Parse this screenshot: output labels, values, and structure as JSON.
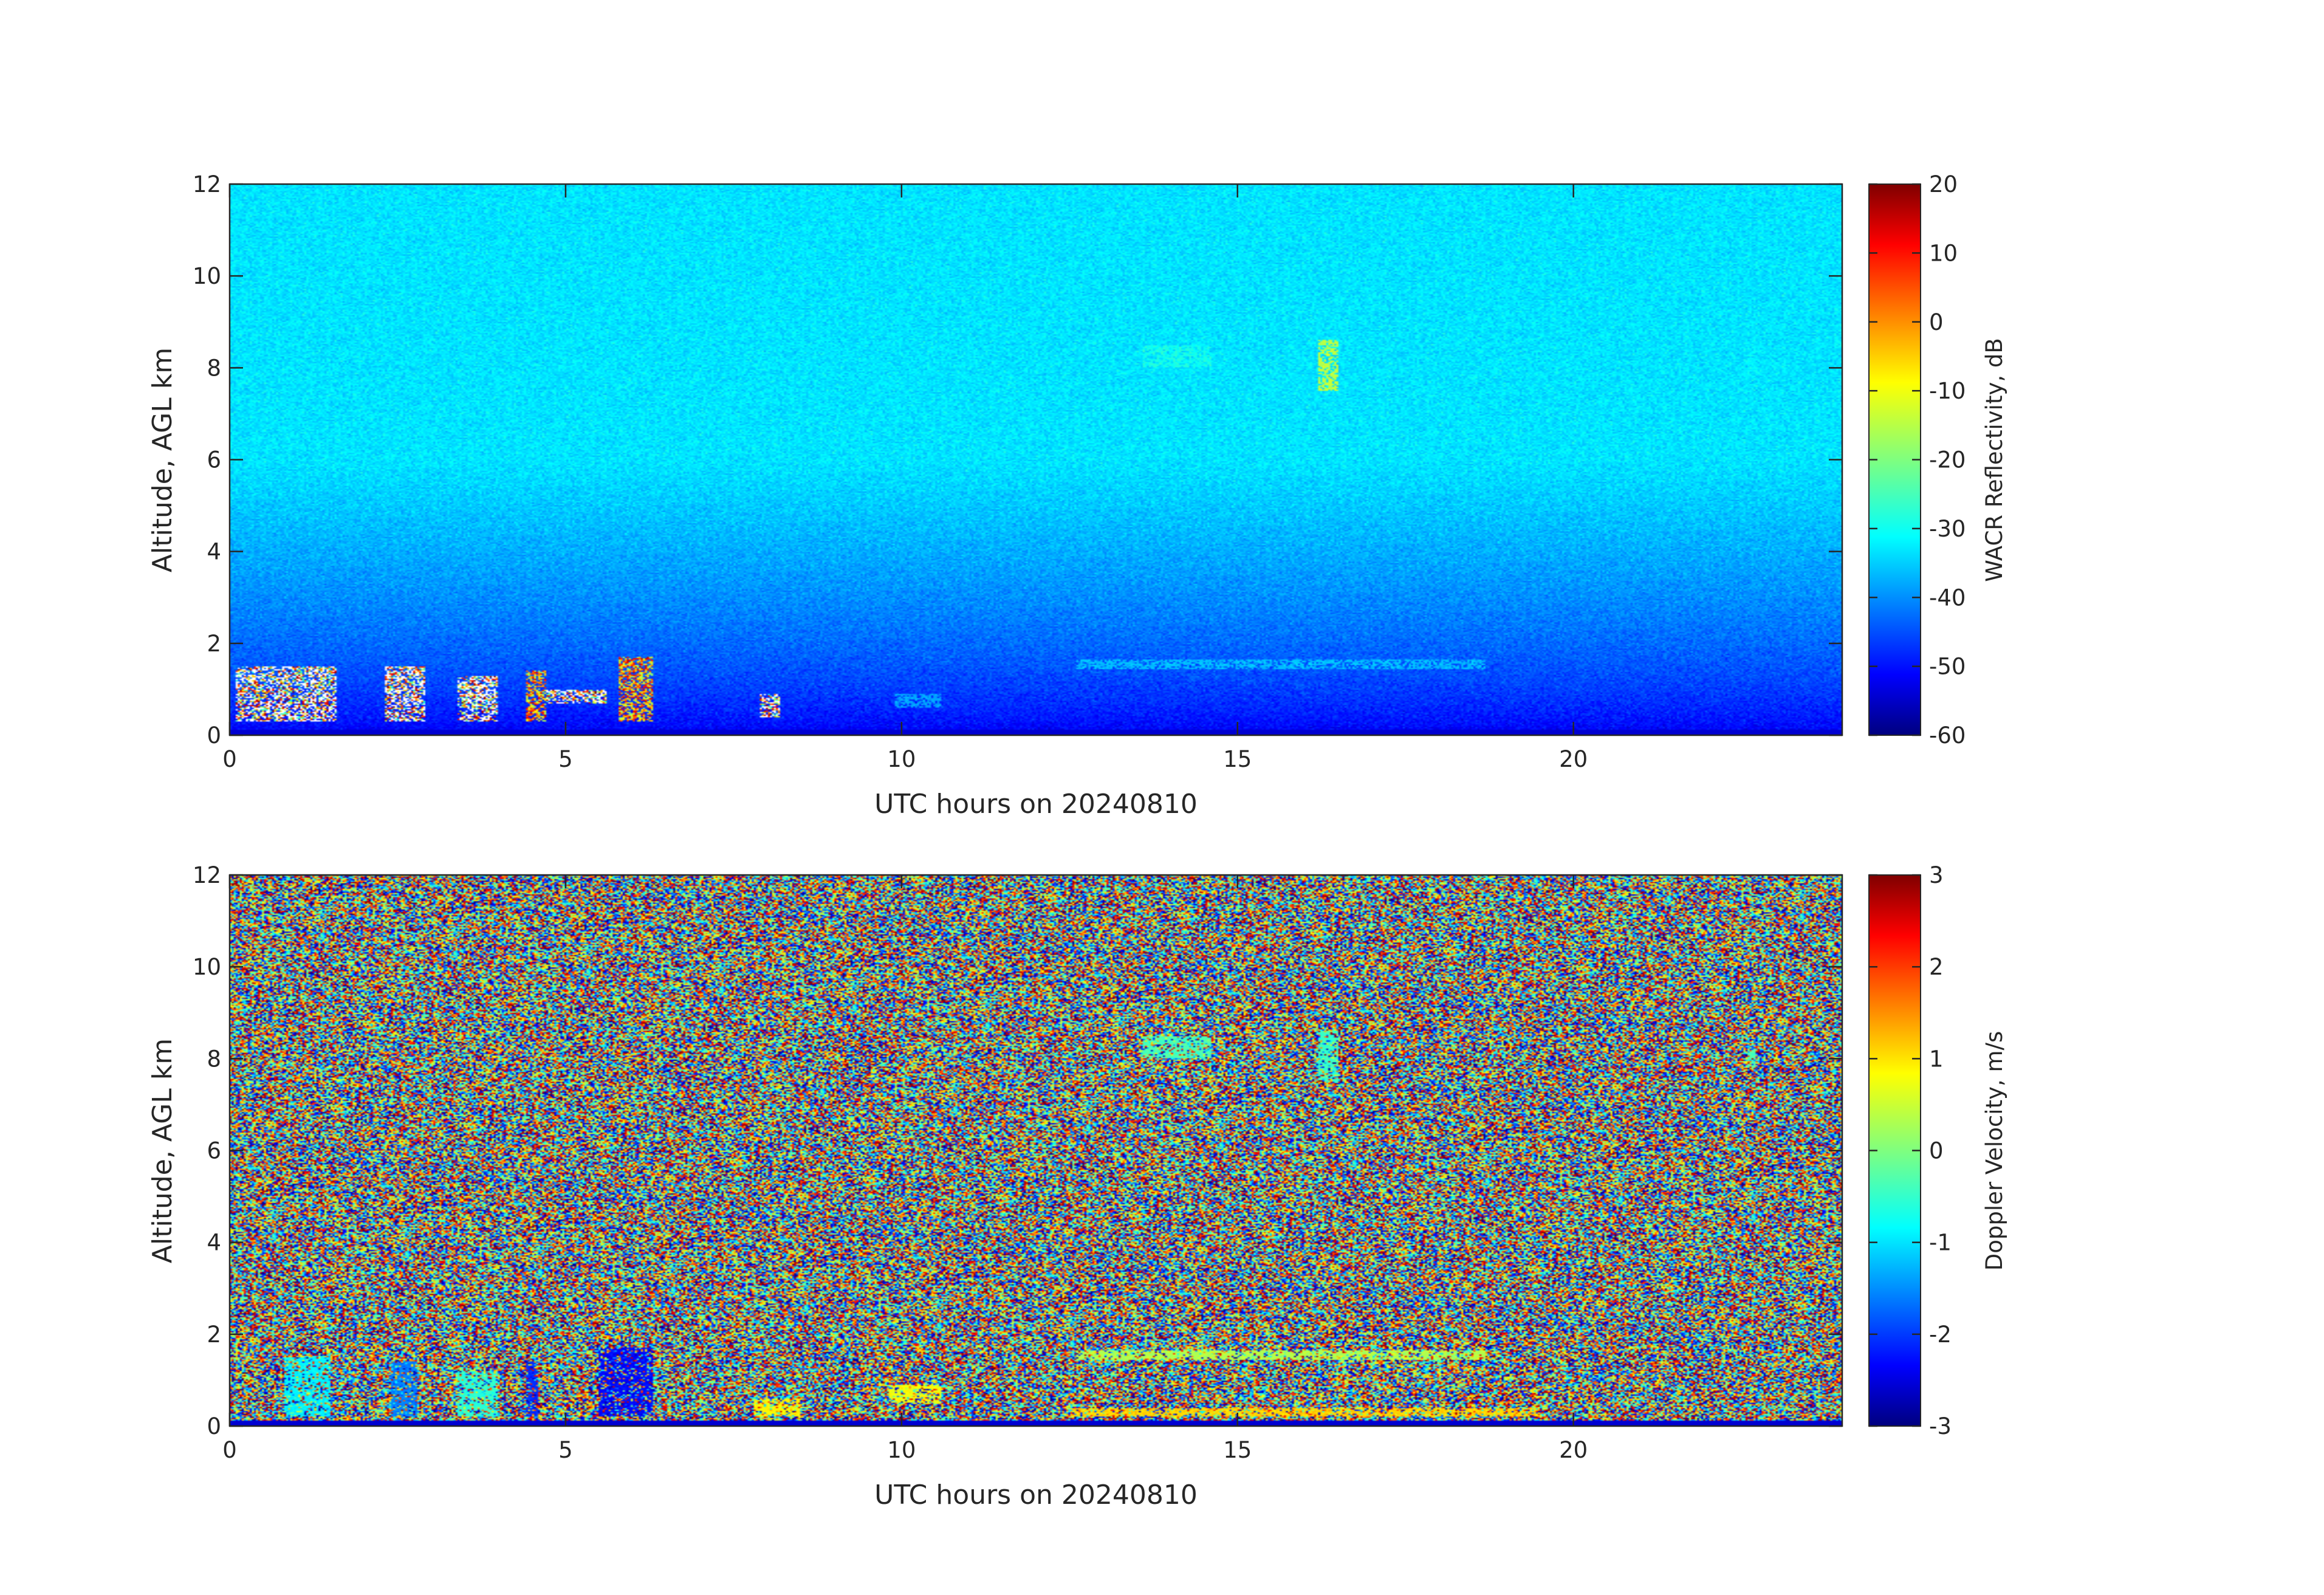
{
  "chart_data": [
    {
      "type": "heatmap",
      "title": "",
      "xlabel": "UTC hours on 20240810",
      "ylabel": "Altitude, AGL km",
      "xlim": [
        0,
        24
      ],
      "ylim": [
        0,
        12
      ],
      "xticks": [
        0,
        5,
        10,
        15,
        20
      ],
      "yticks": [
        0,
        2,
        4,
        6,
        8,
        10,
        12
      ],
      "colorbar": {
        "label": "WACR Reflectivity, dB",
        "range": [
          -60,
          20
        ],
        "ticks": [
          -60,
          -50,
          -40,
          -30,
          -20,
          -10,
          0,
          10,
          20
        ],
        "colormap": "jet"
      },
      "background": {
        "description_values": "noise floor increasing with altitude",
        "value_at_0km": -52,
        "value_at_12km": -32
      },
      "features": [
        {
          "x": [
            0.1,
            1.6
          ],
          "y": [
            0.3,
            1.5
          ],
          "value_range": [
            -30,
            20
          ],
          "note": "clutter"
        },
        {
          "x": [
            2.3,
            2.9
          ],
          "y": [
            0.3,
            1.5
          ],
          "value_range": [
            -30,
            20
          ],
          "note": "clutter"
        },
        {
          "x": [
            3.4,
            4.0
          ],
          "y": [
            0.3,
            1.3
          ],
          "value_range": [
            -30,
            20
          ],
          "note": "clutter"
        },
        {
          "x": [
            4.4,
            4.7
          ],
          "y": [
            0.3,
            1.4
          ],
          "value_range": [
            -20,
            15
          ]
        },
        {
          "x": [
            4.7,
            5.6
          ],
          "y": [
            0.7,
            1.0
          ],
          "value_range": [
            -30,
            20
          ],
          "note": "clutter"
        },
        {
          "x": [
            5.8,
            6.3
          ],
          "y": [
            0.3,
            1.7
          ],
          "value_range": [
            -20,
            15
          ]
        },
        {
          "x": [
            7.9,
            8.2
          ],
          "y": [
            0.4,
            0.9
          ],
          "value_range": [
            -30,
            20
          ],
          "note": "clutter"
        },
        {
          "x": [
            9.9,
            10.6
          ],
          "y": [
            0.6,
            0.9
          ],
          "value": -37
        },
        {
          "x": [
            12.6,
            18.7
          ],
          "y": [
            1.45,
            1.65
          ],
          "value": -35
        },
        {
          "x": [
            13.6,
            14.6
          ],
          "y": [
            8.0,
            8.5
          ],
          "value": -28
        },
        {
          "x": [
            16.2,
            16.5
          ],
          "y": [
            7.5,
            8.6
          ],
          "value": -15
        },
        {
          "x": [
            22.6,
            22.7
          ],
          "y": [
            7.8,
            8.2
          ],
          "value": -30
        }
      ]
    },
    {
      "type": "heatmap",
      "title": "",
      "xlabel": "UTC hours on 20240810",
      "ylabel": "Altitude, AGL km",
      "xlim": [
        0,
        24
      ],
      "ylim": [
        0,
        12
      ],
      "xticks": [
        0,
        5,
        10,
        15,
        20
      ],
      "yticks": [
        0,
        2,
        4,
        6,
        8,
        10,
        12
      ],
      "colorbar": {
        "label": "Doppler Velocity, m/s",
        "range": [
          -3,
          3
        ],
        "ticks": [
          -3,
          -2,
          -1,
          0,
          1,
          2,
          3
        ],
        "colormap": "jet"
      },
      "background": {
        "description_values": "random noise across full range",
        "value_range": [
          -3,
          3
        ]
      },
      "features": [
        {
          "x": [
            0.8,
            1.5
          ],
          "y": [
            0.2,
            1.5
          ],
          "value": -0.8
        },
        {
          "x": [
            2.4,
            2.8
          ],
          "y": [
            0.2,
            1.4
          ],
          "value": -1.5
        },
        {
          "x": [
            3.4,
            4.0
          ],
          "y": [
            0.2,
            1.2
          ],
          "value": -0.5
        },
        {
          "x": [
            4.4,
            4.6
          ],
          "y": [
            0.2,
            1.4
          ],
          "value": -2.0
        },
        {
          "x": [
            5.5,
            6.3
          ],
          "y": [
            0.2,
            1.7
          ],
          "value": -2.2
        },
        {
          "x": [
            7.8,
            8.5
          ],
          "y": [
            0.2,
            0.6
          ],
          "value": 0.8
        },
        {
          "x": [
            9.8,
            10.6
          ],
          "y": [
            0.5,
            0.9
          ],
          "value": 0.7
        },
        {
          "x": [
            12.5,
            19.5
          ],
          "y": [
            0.2,
            0.4
          ],
          "value": 1.0
        },
        {
          "x": [
            12.6,
            18.7
          ],
          "y": [
            1.45,
            1.65
          ],
          "value": 0.3
        },
        {
          "x": [
            13.6,
            14.6
          ],
          "y": [
            8.0,
            8.5
          ],
          "value": -0.3
        },
        {
          "x": [
            16.2,
            16.5
          ],
          "y": [
            7.5,
            8.6
          ],
          "value": -0.4
        },
        {
          "x": [
            22.6,
            22.7
          ],
          "y": [
            7.8,
            8.2
          ],
          "value": -0.3
        }
      ]
    }
  ]
}
